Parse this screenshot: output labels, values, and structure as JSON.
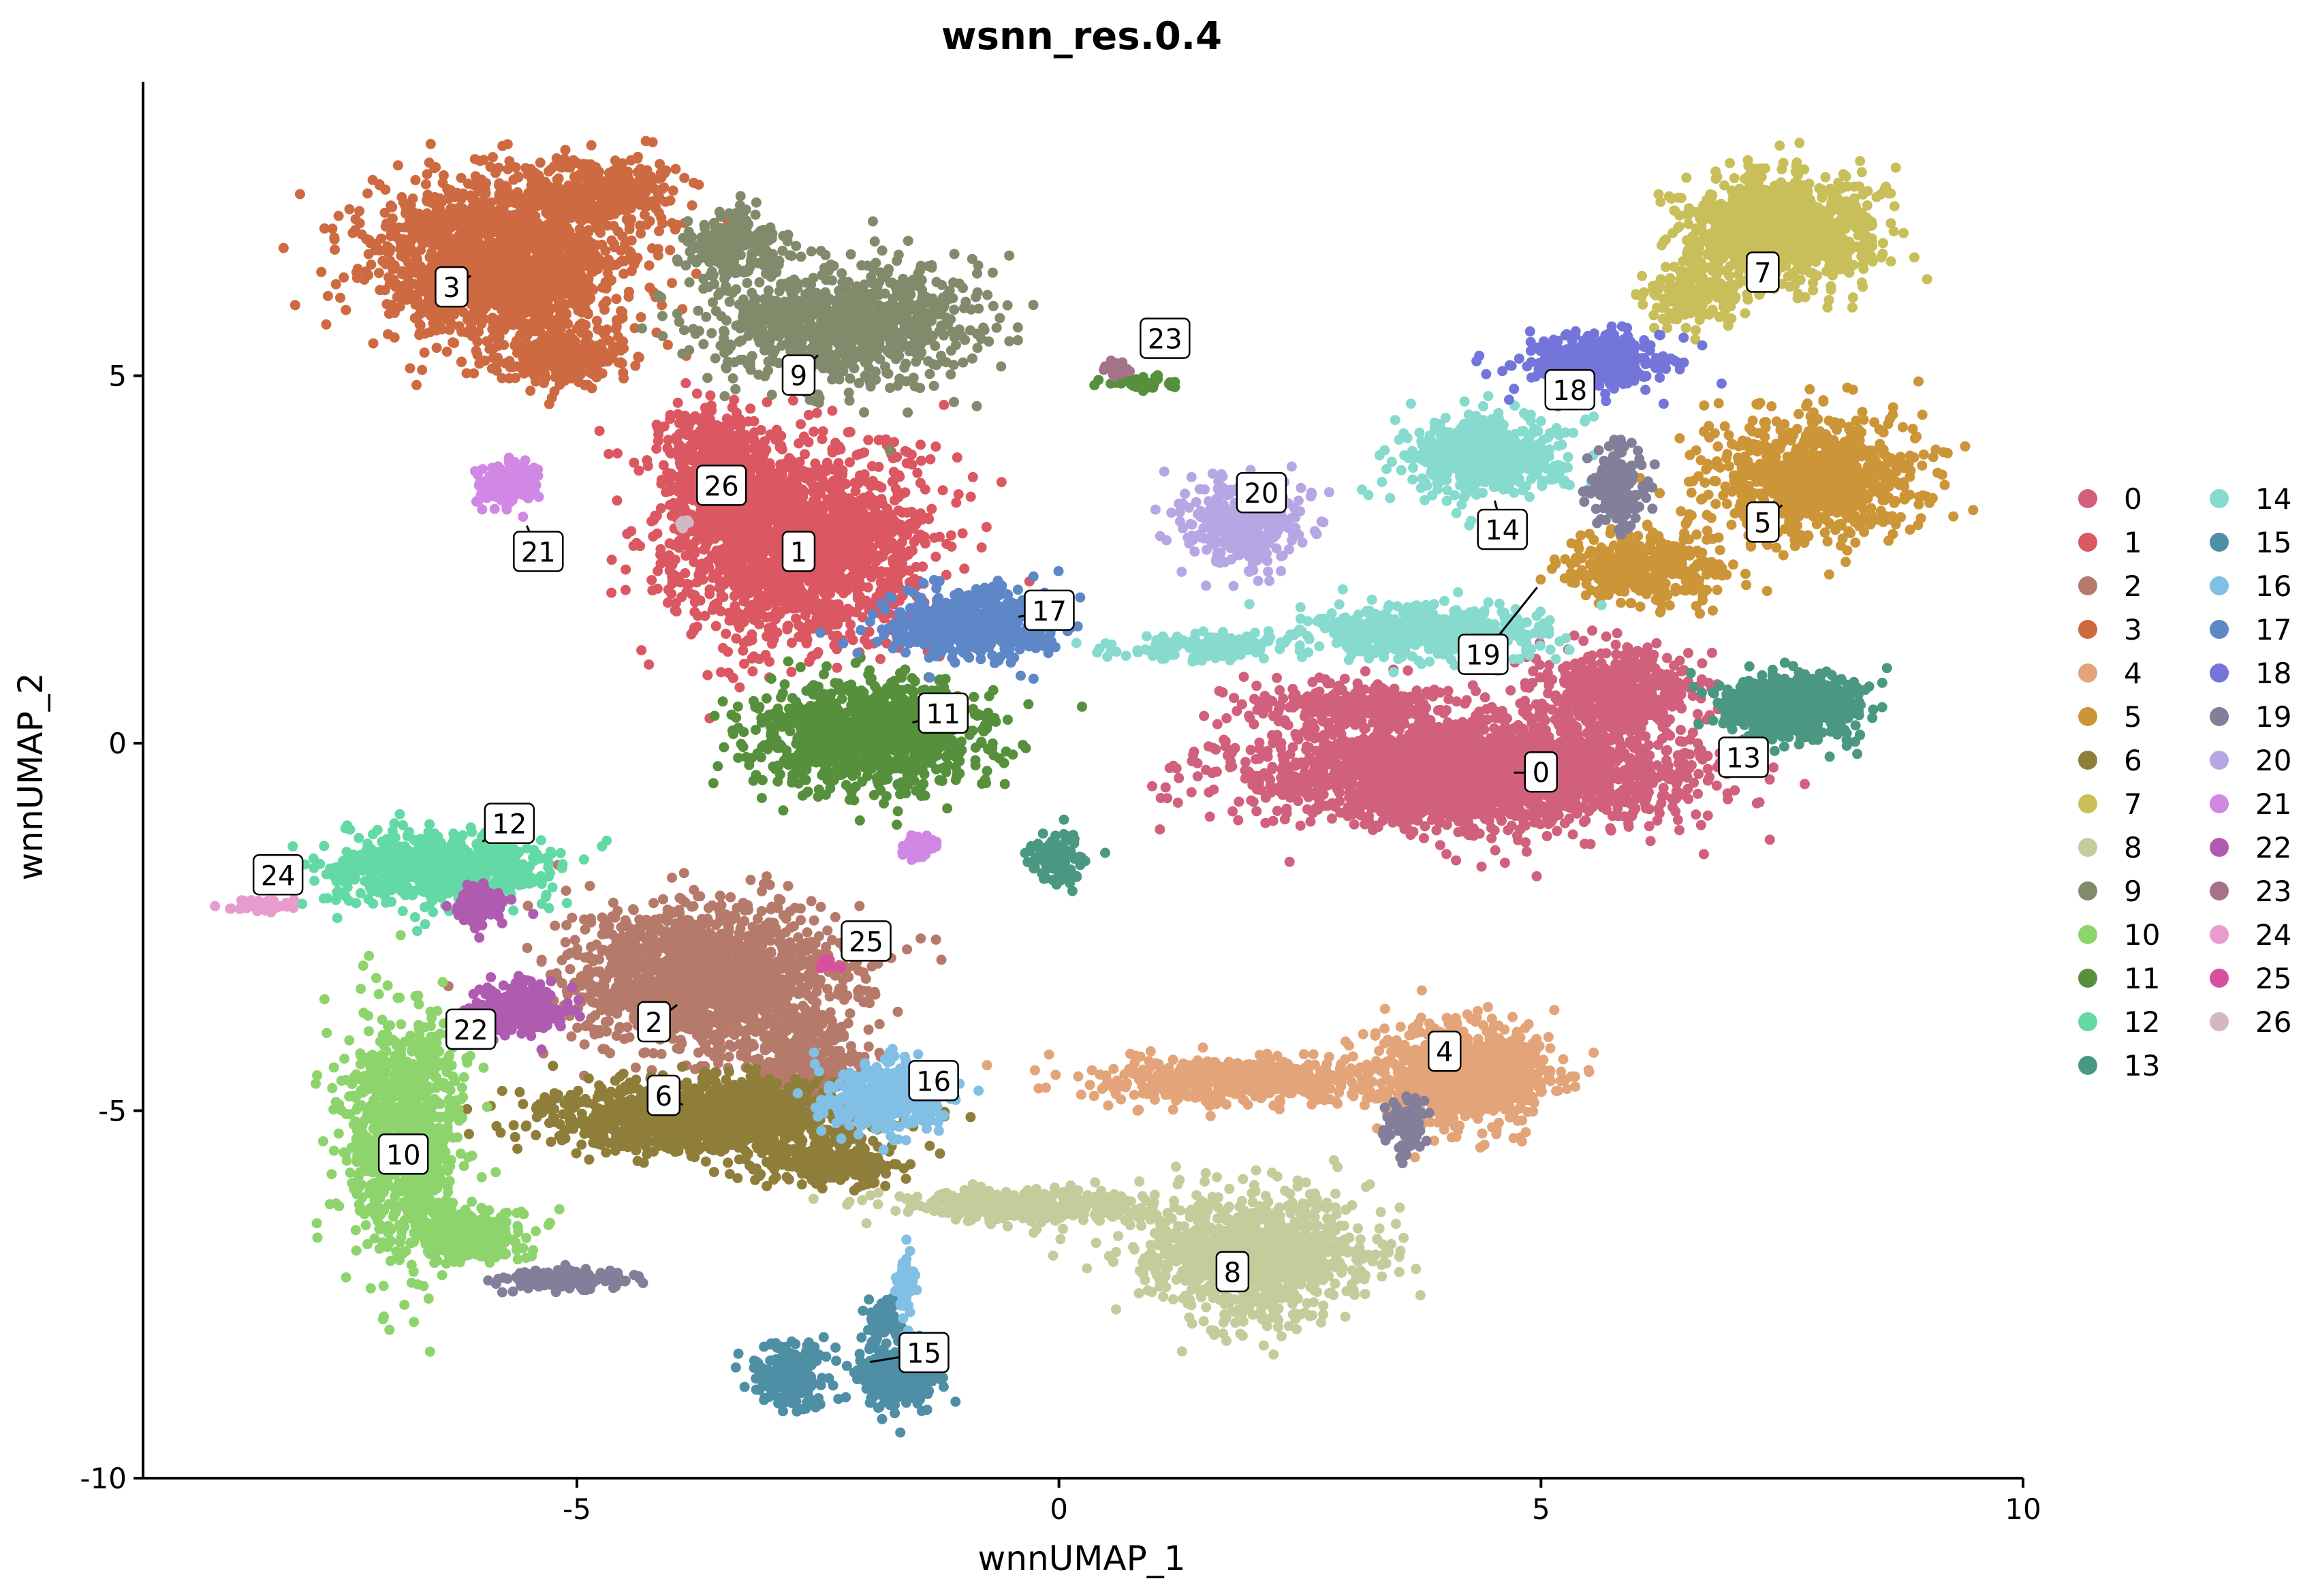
{
  "chart_data": {
    "type": "scatter",
    "title": "wsnn_res.0.4",
    "xlabel": "wnnUMAP_1",
    "ylabel": "wnnUMAP_2",
    "xlim": [
      -9.5,
      10
    ],
    "ylim": [
      -10,
      9
    ],
    "xticks": [
      -5,
      0,
      5,
      10
    ],
    "yticks": [
      -10,
      -5,
      0,
      5
    ],
    "grid": false,
    "legend_position": "right",
    "legend_columns": 2,
    "clusters": [
      {
        "name": "0",
        "color": "#D0607C",
        "label_pos": [
          5.0,
          -0.4
        ],
        "blobs": [
          [
            4.3,
            -0.4,
            2.4,
            0.8,
            2400
          ],
          [
            5.8,
            0.7,
            0.9,
            0.6,
            500
          ],
          [
            3.0,
            0.5,
            1.2,
            0.35,
            250
          ]
        ]
      },
      {
        "name": "1",
        "color": "#DB5762",
        "label_pos": [
          -2.7,
          2.6
        ],
        "blobs": [
          [
            -2.7,
            2.7,
            1.5,
            1.5,
            1800
          ],
          [
            -3.6,
            3.8,
            0.6,
            0.9,
            350
          ]
        ]
      },
      {
        "name": "2",
        "color": "#B57A6A",
        "label_pos": [
          -4.2,
          -3.8
        ],
        "blobs": [
          [
            -3.6,
            -3.2,
            1.6,
            1.1,
            1500
          ],
          [
            -2.6,
            -4.4,
            0.6,
            0.6,
            250
          ]
        ]
      },
      {
        "name": "3",
        "color": "#CD6A42",
        "label_pos": [
          -6.3,
          6.2
        ],
        "blobs": [
          [
            -5.8,
            6.6,
            1.5,
            1.2,
            1600
          ],
          [
            -4.7,
            7.5,
            0.8,
            0.5,
            300
          ],
          [
            -5.2,
            5.3,
            0.8,
            0.5,
            250
          ]
        ]
      },
      {
        "name": "4",
        "color": "#E3A479",
        "label_pos": [
          4.0,
          -4.2
        ],
        "blobs": [
          [
            4.2,
            -4.5,
            1.0,
            0.7,
            900
          ],
          [
            1.8,
            -4.6,
            1.6,
            0.35,
            500
          ]
        ]
      },
      {
        "name": "5",
        "color": "#CC9537",
        "label_pos": [
          7.3,
          3.0
        ],
        "blobs": [
          [
            7.8,
            3.6,
            1.2,
            0.9,
            900
          ],
          [
            6.1,
            2.4,
            0.9,
            0.5,
            400
          ]
        ]
      },
      {
        "name": "6",
        "color": "#8E7E39",
        "label_pos": [
          -4.1,
          -4.8
        ],
        "blobs": [
          [
            -3.6,
            -5.1,
            1.8,
            0.55,
            1200
          ],
          [
            -2.4,
            -5.7,
            0.8,
            0.35,
            250
          ]
        ]
      },
      {
        "name": "7",
        "color": "#C8BF5B",
        "label_pos": [
          7.3,
          6.4
        ],
        "blobs": [
          [
            7.5,
            7.0,
            1.1,
            0.8,
            900
          ],
          [
            6.6,
            6.1,
            0.6,
            0.5,
            200
          ]
        ]
      },
      {
        "name": "8",
        "color": "#C6CB9B",
        "label_pos": [
          1.8,
          -7.2
        ],
        "blobs": [
          [
            2.0,
            -7.0,
            1.3,
            0.9,
            1000
          ],
          [
            -0.3,
            -6.3,
            1.5,
            0.25,
            400
          ]
        ]
      },
      {
        "name": "9",
        "color": "#828A6C",
        "label_pos": [
          -2.7,
          5.0
        ],
        "blobs": [
          [
            -2.2,
            5.7,
            1.6,
            0.9,
            900
          ],
          [
            -3.4,
            6.8,
            0.6,
            0.5,
            200
          ]
        ]
      },
      {
        "name": "10",
        "color": "#8ED46D",
        "label_pos": [
          -6.8,
          -5.6
        ],
        "blobs": [
          [
            -6.8,
            -5.3,
            0.7,
            1.8,
            900
          ],
          [
            -6.1,
            -6.7,
            0.7,
            0.4,
            250
          ]
        ]
      },
      {
        "name": "11",
        "color": "#56903C",
        "label_pos": [
          -1.2,
          0.4
        ],
        "blobs": [
          [
            -2.0,
            0.1,
            1.3,
            0.8,
            1000
          ],
          [
            0.9,
            4.9,
            0.4,
            0.1,
            40
          ]
        ]
      },
      {
        "name": "12",
        "color": "#63D9A5",
        "label_pos": [
          -5.7,
          -1.1
        ],
        "blobs": [
          [
            -6.4,
            -1.7,
            1.2,
            0.5,
            700
          ]
        ]
      },
      {
        "name": "13",
        "color": "#4B9882",
        "label_pos": [
          7.1,
          -0.2
        ],
        "blobs": [
          [
            7.6,
            0.5,
            0.8,
            0.5,
            600
          ],
          [
            0.0,
            -1.6,
            0.3,
            0.5,
            80
          ]
        ]
      },
      {
        "name": "14",
        "color": "#86DBCE",
        "label_pos": [
          4.6,
          2.9
        ],
        "blobs": [
          [
            4.4,
            3.9,
            0.9,
            0.6,
            500
          ],
          [
            3.8,
            1.5,
            1.4,
            0.4,
            500
          ],
          [
            1.5,
            1.3,
            1.0,
            0.2,
            150
          ]
        ]
      },
      {
        "name": "15",
        "color": "#4E8FA6",
        "label_pos": [
          -1.4,
          -8.3
        ],
        "blobs": [
          [
            -2.8,
            -8.6,
            0.4,
            0.5,
            200
          ],
          [
            -1.7,
            -8.6,
            0.5,
            0.5,
            300
          ],
          [
            -1.8,
            -7.8,
            0.2,
            0.3,
            60
          ]
        ]
      },
      {
        "name": "16",
        "color": "#82BFE4",
        "label_pos": [
          -1.3,
          -4.6
        ],
        "blobs": [
          [
            -1.8,
            -4.8,
            0.7,
            0.5,
            400
          ],
          [
            -1.6,
            -7.4,
            0.1,
            0.5,
            60
          ]
        ]
      },
      {
        "name": "17",
        "color": "#5E87C7",
        "label_pos": [
          -0.1,
          1.8
        ],
        "blobs": [
          [
            -0.9,
            1.6,
            0.9,
            0.5,
            600
          ]
        ]
      },
      {
        "name": "18",
        "color": "#7475DA",
        "label_pos": [
          5.3,
          4.8
        ],
        "blobs": [
          [
            5.6,
            5.2,
            0.8,
            0.4,
            400
          ]
        ]
      },
      {
        "name": "19",
        "color": "#837E99",
        "label_pos": [
          4.4,
          1.2
        ],
        "blobs": [
          [
            5.8,
            3.5,
            0.3,
            0.6,
            200
          ],
          [
            3.6,
            -5.2,
            0.2,
            0.4,
            100
          ],
          [
            -5.1,
            -7.3,
            0.7,
            0.15,
            150
          ]
        ]
      },
      {
        "name": "20",
        "color": "#B6A7E4",
        "label_pos": [
          2.1,
          3.4
        ],
        "blobs": [
          [
            1.9,
            3.0,
            0.7,
            0.6,
            350
          ]
        ]
      },
      {
        "name": "21",
        "color": "#D187E4",
        "label_pos": [
          -5.4,
          2.6
        ],
        "blobs": [
          [
            -5.7,
            3.5,
            0.35,
            0.35,
            180
          ],
          [
            -1.5,
            -1.4,
            0.2,
            0.15,
            60
          ]
        ]
      },
      {
        "name": "22",
        "color": "#AF5BB0",
        "label_pos": [
          -6.1,
          -3.9
        ],
        "blobs": [
          [
            -5.6,
            -3.6,
            0.5,
            0.4,
            250
          ],
          [
            -6.0,
            -2.2,
            0.3,
            0.3,
            100
          ]
        ]
      },
      {
        "name": "23",
        "color": "#A57389",
        "label_pos": [
          1.1,
          5.5
        ],
        "blobs": [
          [
            0.6,
            5.1,
            0.15,
            0.12,
            40
          ]
        ]
      },
      {
        "name": "24",
        "color": "#E89CCD",
        "label_pos": [
          -8.1,
          -1.8
        ],
        "blobs": [
          [
            -8.3,
            -2.2,
            0.35,
            0.08,
            60
          ]
        ]
      },
      {
        "name": "25",
        "color": "#D84F9D",
        "label_pos": [
          -2.0,
          -2.7
        ],
        "blobs": [
          [
            -2.4,
            -3.0,
            0.1,
            0.08,
            15
          ]
        ]
      },
      {
        "name": "26",
        "color": "#D2B8C1",
        "label_pos": [
          -3.5,
          3.5
        ],
        "blobs": [
          [
            -3.9,
            3.0,
            0.1,
            0.1,
            10
          ]
        ]
      }
    ]
  }
}
